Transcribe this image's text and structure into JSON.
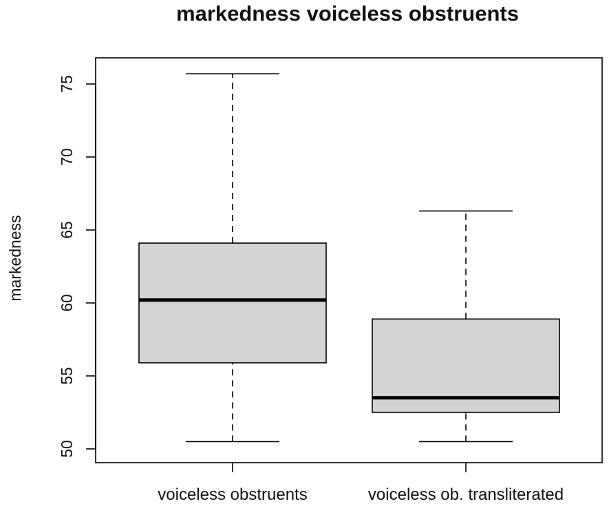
{
  "chart_data": {
    "type": "boxplot",
    "title": "markedness voiceless obstruents",
    "xlabel": "",
    "ylabel": "markedness",
    "ylim": [
      49.5,
      77
    ],
    "yticks": [
      "50",
      "55",
      "60",
      "65",
      "70",
      "75"
    ],
    "categories": [
      "voiceless obstruents",
      "voiceless ob. transliterated"
    ],
    "boxes": [
      {
        "category": "voiceless obstruents",
        "min": 50.5,
        "q1": 55.9,
        "median": 60.2,
        "q3": 64.1,
        "max": 75.7
      },
      {
        "category": "voiceless ob. transliterated",
        "min": 50.5,
        "q1": 52.5,
        "median": 53.5,
        "q3": 58.9,
        "max": 66.3
      }
    ],
    "box_fill": "#d3d3d3",
    "line_color": "#000000",
    "grid": false,
    "legend": "none"
  }
}
